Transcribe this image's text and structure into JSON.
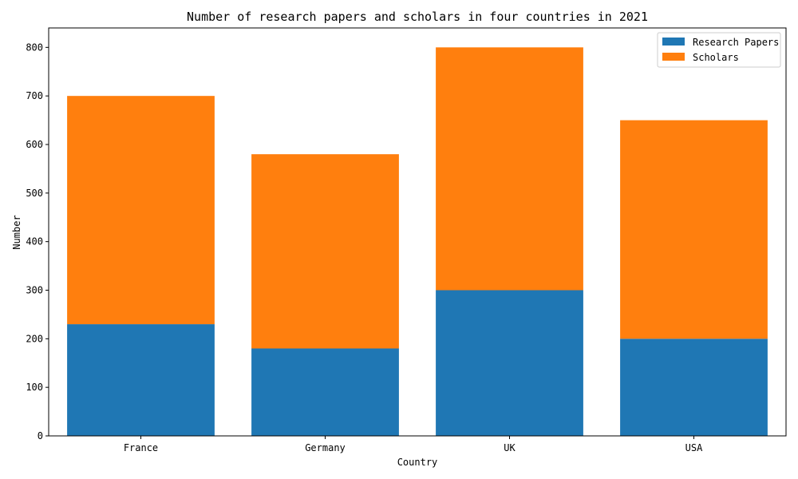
{
  "colors": {
    "research_papers": "#1f77b4",
    "scholars": "#ff7f0e",
    "axis": "#000000",
    "legend_border": "#cccccc"
  },
  "chart_data": {
    "type": "bar",
    "stacked": true,
    "title": "Number of research papers and scholars in four countries in 2021",
    "xlabel": "Country",
    "ylabel": "Number",
    "categories": [
      "France",
      "Germany",
      "UK",
      "USA"
    ],
    "series": [
      {
        "name": "Research Papers",
        "values": [
          230,
          180,
          300,
          200
        ],
        "color": "#1f77b4"
      },
      {
        "name": "Scholars",
        "values": [
          470,
          400,
          500,
          450
        ],
        "color": "#ff7f0e"
      }
    ],
    "ylim": [
      0,
      840
    ],
    "yticks": [
      0,
      100,
      200,
      300,
      400,
      500,
      600,
      700,
      800
    ],
    "grid": false,
    "legend_position": "top-right"
  }
}
